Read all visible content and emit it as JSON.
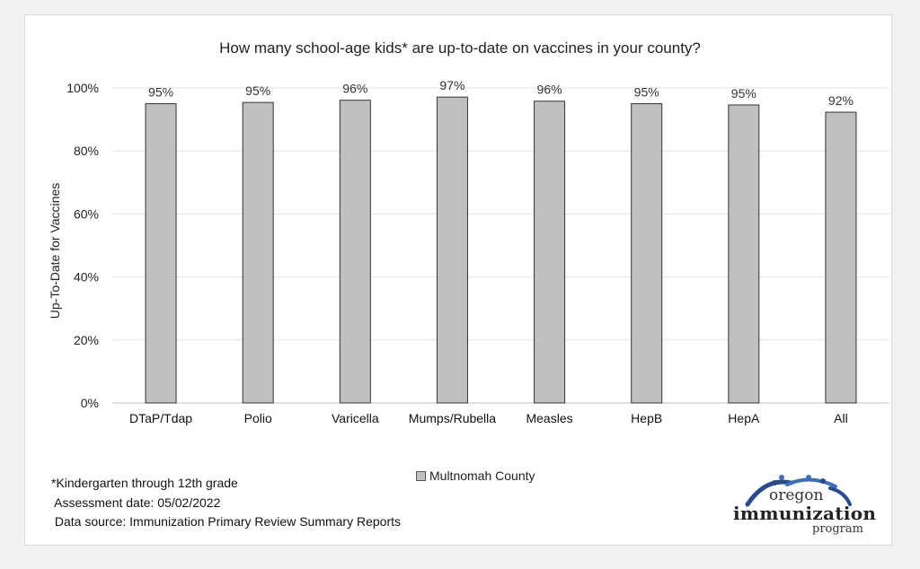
{
  "chart_data": {
    "type": "bar",
    "title": "How many school-age kids* are up-to-date on vaccines in your county?",
    "ylabel": "Up-To-Date for Vaccines",
    "xlabel": "",
    "ylim": [
      0,
      100
    ],
    "yticks": [
      "0%",
      "20%",
      "40%",
      "60%",
      "80%",
      "100%"
    ],
    "ytick_values": [
      0,
      20,
      40,
      60,
      80,
      100
    ],
    "categories": [
      "DTaP/Tdap",
      "Polio",
      "Varicella",
      "Mumps/Rubella",
      "Measles",
      "HepB",
      "HepA",
      "All"
    ],
    "series": [
      {
        "name": "Multnomah County",
        "values": [
          95.0,
          95.4,
          96.1,
          97.1,
          95.8,
          95.0,
          94.6,
          92.3
        ],
        "labels": [
          "95%",
          "95%",
          "96%",
          "97%",
          "96%",
          "95%",
          "95%",
          "92%"
        ],
        "color": "#c0c0c0"
      }
    ],
    "grid": true,
    "legend_position": "bottom"
  },
  "footnotes": {
    "line1": "*Kindergarten through 12th grade",
    "line2": " Assessment date: 05/02/2022",
    "line3": " Data source: Immunization Primary Review Summary Reports"
  },
  "logo": {
    "line1": "oregon",
    "line2": "immunization",
    "line3": "program",
    "accent_color": "#2a4a8a"
  }
}
